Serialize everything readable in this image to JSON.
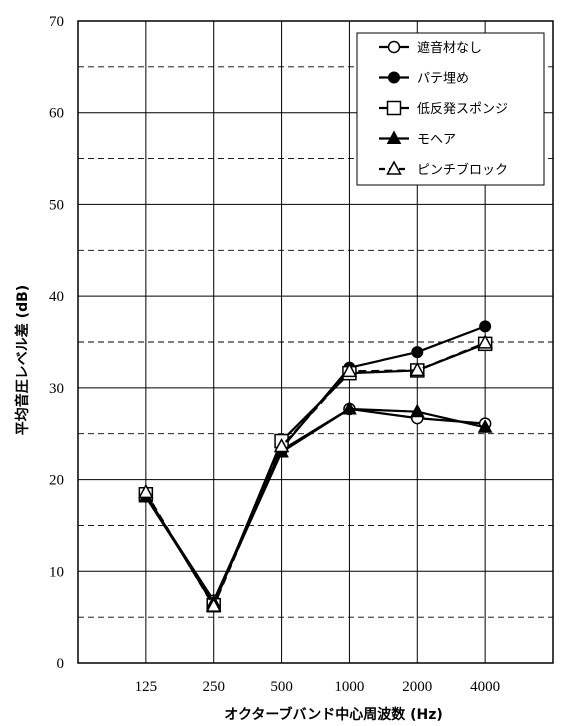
{
  "chart_data": {
    "type": "line",
    "title": "",
    "xlabel": "オクターブバンド中心周波数 (Hz)",
    "ylabel": "平均音圧レベル差 (dB)",
    "categories": [
      "125",
      "250",
      "500",
      "1000",
      "2000",
      "4000"
    ],
    "ylim": [
      0,
      70
    ],
    "yticks": [
      "0",
      "10",
      "20",
      "30",
      "40",
      "50",
      "60",
      "70"
    ],
    "grid": "horizontal solid every 10, dashed every 5; vertical at each category",
    "legend_position": "top-right",
    "series": [
      {
        "name": "遮音材なし",
        "values": [
          18.2,
          6.8,
          23.2,
          27.7,
          26.7,
          26.1
        ],
        "marker": "open-circle",
        "line": "solid"
      },
      {
        "name": "パテ埋め",
        "values": [
          18.3,
          6.5,
          23.4,
          32.2,
          33.9,
          36.7
        ],
        "marker": "filled-circle",
        "line": "solid"
      },
      {
        "name": "低反発スポンジ",
        "values": [
          18.4,
          6.3,
          24.2,
          31.6,
          31.9,
          34.8
        ],
        "marker": "open-square",
        "line": "solid"
      },
      {
        "name": "モヘア",
        "values": [
          18.1,
          6.6,
          23.0,
          27.7,
          27.4,
          25.7
        ],
        "marker": "filled-triangle",
        "line": "solid"
      },
      {
        "name": "ピンチブロック",
        "values": [
          18.6,
          6.2,
          23.6,
          31.8,
          31.9,
          34.9
        ],
        "marker": "open-triangle",
        "line": "dashed"
      }
    ]
  }
}
